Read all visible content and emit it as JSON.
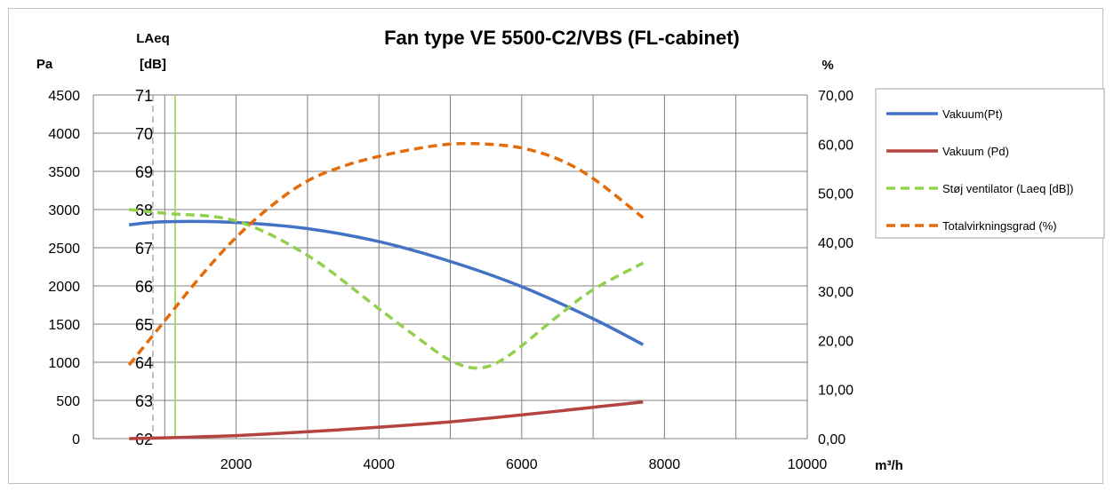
{
  "chart_data": {
    "type": "line",
    "title": "Fan type VE 5500-C2/VBS (FL-cabinet)",
    "xlabel": "m³/h",
    "xlim": [
      0,
      10000
    ],
    "x_ticks": [
      "2000",
      "4000",
      "6000",
      "8000",
      "10000"
    ],
    "axes": {
      "pa": {
        "label": "Pa",
        "ylim": [
          0,
          4500
        ],
        "ticks": [
          "0",
          "500",
          "1000",
          "1500",
          "2000",
          "2500",
          "3000",
          "3500",
          "4000",
          "4500"
        ]
      },
      "laeq": {
        "label_line1": "LAeq",
        "label_line2": "[dB]",
        "ylim": [
          62,
          71
        ],
        "ticks": [
          "62",
          "63",
          "64",
          "65",
          "66",
          "67",
          "68",
          "69",
          "70",
          "71"
        ]
      },
      "pct": {
        "label": "%",
        "ylim": [
          0,
          70
        ],
        "ticks": [
          "0,00",
          "10,00",
          "20,00",
          "30,00",
          "40,00",
          "50,00",
          "60,00",
          "70,00"
        ]
      }
    },
    "grid": true,
    "legend_position": "right",
    "series": [
      {
        "name": "Vakuum(Pt)",
        "axis": "pa",
        "color": "#4472c4",
        "dashed": false,
        "x": [
          500,
          1000,
          2000,
          3000,
          4000,
          5000,
          6000,
          7000,
          7700
        ],
        "y": [
          2800,
          2840,
          2830,
          2750,
          2580,
          2320,
          1990,
          1570,
          1230
        ]
      },
      {
        "name": "Vakuum (Pd)",
        "axis": "pa",
        "color": "#b5433f",
        "dashed": false,
        "x": [
          500,
          1000,
          2000,
          3000,
          4000,
          5000,
          6000,
          7000,
          7700
        ],
        "y": [
          0,
          10,
          40,
          90,
          150,
          220,
          310,
          410,
          480
        ]
      },
      {
        "name": "Støj ventilator (Laeq [dB])",
        "axis": "laeq",
        "color": "#92d050",
        "dashed": true,
        "x": [
          500,
          1000,
          2000,
          3000,
          4000,
          4500,
          5000,
          5400,
          5800,
          6500,
          7000,
          7700
        ],
        "y": [
          68.0,
          67.9,
          67.7,
          66.8,
          65.4,
          64.7,
          64.05,
          63.85,
          64.15,
          65.2,
          65.9,
          66.6
        ]
      },
      {
        "name": "Totalvirkningsgrad (%)",
        "axis": "pct",
        "color": "#e36c09",
        "dashed": true,
        "x": [
          500,
          1000,
          1500,
          2000,
          2500,
          3000,
          3500,
          4000,
          4500,
          5000,
          5500,
          6000,
          6500,
          7000,
          7700
        ],
        "y": [
          15,
          24,
          33,
          41,
          47.5,
          52.5,
          55.5,
          57.5,
          59,
          60,
          60,
          59.2,
          57,
          53,
          45
        ]
      }
    ]
  }
}
